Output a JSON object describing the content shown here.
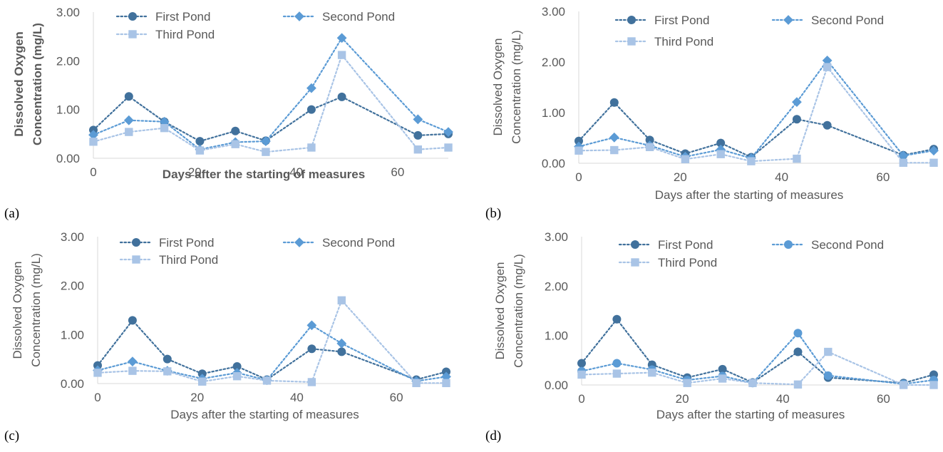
{
  "colors": {
    "first": "#41719c",
    "second": "#5b9bd5",
    "third": "#a9c4e6",
    "axis": "#d9d9d9",
    "text": "#595959"
  },
  "icons": {
    "first": "circle-marker-icon",
    "second_panels_abc": "diamond-marker-icon",
    "second_panel_d": "circle-marker-icon",
    "third": "square-marker-icon"
  },
  "chart_data": [
    {
      "type": "line",
      "panel": "(a)",
      "xlabel": "Days after the starting of measures",
      "ylabel": "Dissolved Oxygen Concentration (mg/L)",
      "xlim": [
        0,
        70
      ],
      "ylim": [
        0,
        3
      ],
      "xticks": [
        "0",
        "20",
        "40",
        "60"
      ],
      "yticks": [
        "0.00",
        "1.00",
        "2.00",
        "3.00"
      ],
      "legend": "top",
      "x": [
        0,
        7,
        14,
        21,
        28,
        34,
        43,
        49,
        64,
        70
      ],
      "series": [
        {
          "name": "First Pond",
          "marker": "circle",
          "values": [
            0.58,
            1.27,
            0.75,
            0.35,
            0.56,
            0.36,
            1.0,
            1.26,
            0.47,
            0.5
          ]
        },
        {
          "name": "Second Pond",
          "marker": "diamond",
          "values": [
            0.48,
            0.78,
            0.75,
            0.18,
            0.33,
            0.35,
            1.44,
            2.47,
            0.8,
            0.54
          ]
        },
        {
          "name": "Third Pond",
          "marker": "square",
          "values": [
            0.34,
            0.54,
            0.62,
            0.16,
            0.29,
            0.13,
            0.22,
            2.12,
            0.18,
            0.22
          ]
        }
      ]
    },
    {
      "type": "line",
      "panel": "(b)",
      "xlabel": "Days after the starting of measures",
      "ylabel": "Dissolved Oxygen Concentration (mg/L)",
      "xlim": [
        0,
        70
      ],
      "ylim": [
        0,
        3
      ],
      "xticks": [
        "0",
        "20",
        "40",
        "60"
      ],
      "yticks": [
        "0.00",
        "1.00",
        "2.00",
        "3.00"
      ],
      "legend": "top",
      "x": [
        0,
        7,
        14,
        21,
        28,
        34,
        43,
        49,
        64,
        70
      ],
      "series": [
        {
          "name": "First Pond",
          "marker": "circle",
          "values": [
            0.44,
            1.2,
            0.46,
            0.19,
            0.4,
            0.12,
            0.87,
            0.75,
            0.16,
            0.28
          ]
        },
        {
          "name": "Second Pond",
          "marker": "diamond",
          "values": [
            0.33,
            0.51,
            0.35,
            0.13,
            0.27,
            0.1,
            1.21,
            2.03,
            0.15,
            0.25
          ]
        },
        {
          "name": "Third Pond",
          "marker": "square",
          "values": [
            0.25,
            0.26,
            0.32,
            0.08,
            0.18,
            0.04,
            0.09,
            1.9,
            0.01,
            0.01
          ]
        }
      ]
    },
    {
      "type": "line",
      "panel": "(c)",
      "xlabel": "Days after the starting of measures",
      "ylabel": "Dissolved Oxygen Concentration (mg/L)",
      "xlim": [
        0,
        70
      ],
      "ylim": [
        0,
        3
      ],
      "xticks": [
        "0",
        "20",
        "40",
        "60"
      ],
      "yticks": [
        "0.00",
        "1.00",
        "2.00",
        "3.00"
      ],
      "legend": "top",
      "x": [
        0,
        7,
        14,
        21,
        28,
        34,
        43,
        49,
        64,
        70
      ],
      "series": [
        {
          "name": "First Pond",
          "marker": "circle",
          "values": [
            0.37,
            1.29,
            0.5,
            0.2,
            0.35,
            0.08,
            0.71,
            0.65,
            0.08,
            0.24
          ]
        },
        {
          "name": "Second Pond",
          "marker": "diamond",
          "values": [
            0.27,
            0.45,
            0.26,
            0.1,
            0.22,
            0.07,
            1.19,
            0.82,
            0.05,
            0.14
          ]
        },
        {
          "name": "Third Pond",
          "marker": "square",
          "values": [
            0.22,
            0.26,
            0.25,
            0.04,
            0.15,
            0.06,
            0.03,
            1.7,
            0.01,
            0.01
          ]
        }
      ]
    },
    {
      "type": "line",
      "panel": "(d)",
      "xlabel": "Days after the starting of measures",
      "ylabel": "Dissolved Oxygen Concentration (mg/L)",
      "xlim": [
        0,
        70
      ],
      "ylim": [
        0,
        3
      ],
      "xticks": [
        "0",
        "20",
        "40",
        "60"
      ],
      "yticks": [
        "0.00",
        "1.00",
        "2.00",
        "3.00"
      ],
      "legend": "top",
      "x": [
        0,
        7,
        14,
        21,
        28,
        34,
        43,
        49,
        64,
        70
      ],
      "series": [
        {
          "name": "First Pond",
          "marker": "circle",
          "values": [
            0.44,
            1.33,
            0.41,
            0.15,
            0.32,
            0.05,
            0.67,
            0.15,
            0.04,
            0.21
          ]
        },
        {
          "name": "Second Pond",
          "marker": "circle",
          "values": [
            0.28,
            0.44,
            0.31,
            0.1,
            0.18,
            0.04,
            1.05,
            0.19,
            0.02,
            0.1
          ]
        },
        {
          "name": "Third Pond",
          "marker": "square",
          "values": [
            0.21,
            0.23,
            0.25,
            0.04,
            0.13,
            0.04,
            0.01,
            0.67,
            0.0,
            0.0
          ]
        }
      ]
    }
  ]
}
